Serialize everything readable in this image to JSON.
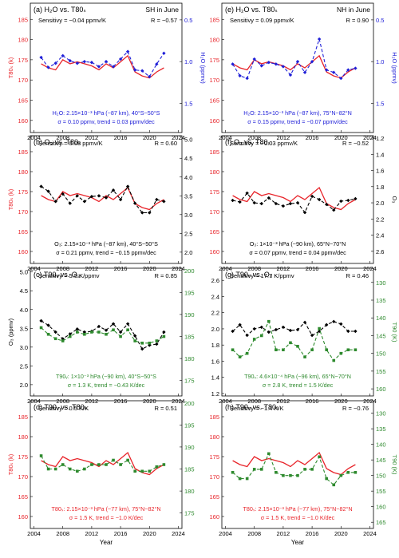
{
  "figure": {
    "x_axis_label": "Year",
    "x_ticks": [
      2004,
      2008,
      2012,
      2016,
      2020,
      2024
    ],
    "colors": {
      "red": "#e8242a",
      "blue": "#2020d8",
      "green": "#2e8a2e",
      "black": "#000000",
      "frame": "#000000"
    }
  },
  "chart_data": [
    {
      "type": "line",
      "title": "(a) H₂O vs. T80ₛ",
      "corner_label": "SH in June",
      "sens": "Sensitivy = −0.04 ppmv/K",
      "r": "R = −0.57",
      "info1": "H₂O: 2.15×10⁻³ hPa (~87 km), 40°S~50°S",
      "info2": "σ = 0.10 ppmv,   trend = 0.03 ppmv/dec",
      "info_color": "blue",
      "ylabel_left": "T80ₛ (k)",
      "ylabel_right": "H₂O (ppmv)",
      "left_ticks": [
        160,
        165,
        170,
        175,
        180,
        185
      ],
      "right_ticks": [
        "0.5",
        "1.0",
        "1.5"
      ],
      "left_range": [
        157,
        189
      ],
      "right_range": [
        0.3,
        1.85
      ],
      "right_inverted": true,
      "x": [
        2005,
        2006,
        2007,
        2008,
        2009,
        2010,
        2011,
        2012,
        2013,
        2014,
        2015,
        2016,
        2017,
        2018,
        2019,
        2020,
        2021,
        2022
      ],
      "series": [
        {
          "name": "T80ₛ",
          "axis": "left",
          "color": "red",
          "style": "solid",
          "marker": "none",
          "values": [
            174,
            173,
            172.5,
            175,
            174,
            174.5,
            174,
            173.5,
            172.5,
            174,
            173,
            174.5,
            176,
            172,
            171,
            170.5,
            172,
            173
          ]
        },
        {
          "name": "H₂O",
          "axis": "right",
          "color": "blue",
          "style": "dash",
          "marker": "diamond",
          "values": [
            0.95,
            1.07,
            1.02,
            0.93,
            0.99,
            1.02,
            1.0,
            1.01,
            1.06,
            1.0,
            1.06,
            0.97,
            0.88,
            1.1,
            1.11,
            1.18,
            1.03,
            0.9
          ]
        }
      ]
    },
    {
      "type": "line",
      "title": "(e) H₂O vs. T80ₛ",
      "corner_label": "NH in June",
      "sens": "Sensitivy = 0.09 ppmv/K",
      "r": "R = 0.90",
      "info1": "H₂O: 2.15×10⁻³ hPa (~87 km), 75°N~82°N",
      "info2": "σ = 0.15 ppmv,   trend = −0.07 ppmv/dec",
      "info_color": "blue",
      "ylabel_left": "",
      "ylabel_right": "H₂O (ppmv)",
      "left_ticks": [
        160,
        165,
        170,
        175,
        180,
        185
      ],
      "right_ticks": [
        "0.5",
        "1.0",
        "1.5"
      ],
      "left_range": [
        157,
        189
      ],
      "right_range": [
        0.3,
        1.85
      ],
      "right_inverted": true,
      "x": [
        2005,
        2006,
        2007,
        2008,
        2009,
        2010,
        2011,
        2012,
        2013,
        2014,
        2015,
        2016,
        2017,
        2018,
        2019,
        2020,
        2021,
        2022
      ],
      "series": [
        {
          "name": "T80ₛ",
          "axis": "left",
          "color": "red",
          "style": "solid",
          "marker": "none",
          "values": [
            174,
            173,
            172.5,
            175,
            174,
            174.5,
            174,
            173.5,
            172.5,
            174,
            173,
            174.5,
            176,
            172,
            171,
            170.5,
            172,
            173
          ]
        },
        {
          "name": "H₂O",
          "axis": "right",
          "color": "blue",
          "style": "dash",
          "marker": "diamond",
          "values": [
            1.03,
            1.17,
            1.2,
            0.97,
            1.05,
            1.01,
            1.03,
            1.06,
            1.16,
            1.0,
            1.13,
            1.0,
            0.73,
            1.1,
            1.13,
            1.2,
            1.1,
            1.08
          ]
        }
      ]
    },
    {
      "type": "line",
      "title": "(b) O₃ vs. T80ₛ",
      "corner_label": "",
      "sens": "Sensitivy = 0.08 ppmv/K",
      "r": "R = 0.60",
      "info1": "O₃: 2.15×10⁻³ hPa (~87 km), 40°S~50°S",
      "info2": "σ = 0.21 ppmv,   trend = −0.15 ppmv/dec",
      "info_color": "black",
      "ylabel_left": "T80ₛ (k)",
      "ylabel_right": "",
      "left_ticks": [
        160,
        165,
        170,
        175,
        180,
        185
      ],
      "right_ticks": [
        "2.0",
        "2.5",
        "3.0",
        "3.5",
        "4.0",
        "4.5",
        "5.0"
      ],
      "left_range": [
        157,
        189
      ],
      "right_range": [
        1.7,
        5.1
      ],
      "right_inverted": false,
      "x": [
        2005,
        2006,
        2007,
        2008,
        2009,
        2010,
        2011,
        2012,
        2013,
        2014,
        2015,
        2016,
        2017,
        2018,
        2019,
        2020,
        2021,
        2022
      ],
      "series": [
        {
          "name": "T80ₛ",
          "axis": "left",
          "color": "red",
          "style": "solid",
          "marker": "none",
          "values": [
            174,
            173,
            172.5,
            175,
            174,
            174.5,
            174,
            173.5,
            172.5,
            174,
            173,
            174.5,
            176,
            172,
            171,
            170.5,
            172,
            173
          ]
        },
        {
          "name": "O₃",
          "axis": "right",
          "color": "black",
          "style": "dash",
          "marker": "diamond",
          "values": [
            3.75,
            3.62,
            3.35,
            3.55,
            3.3,
            3.5,
            3.35,
            3.48,
            3.5,
            3.45,
            3.65,
            3.4,
            3.75,
            3.3,
            3.05,
            3.05,
            3.4,
            3.35
          ]
        }
      ]
    },
    {
      "type": "line",
      "title": "(f) O₃ vs. T80ₛ",
      "corner_label": "",
      "sens": "Sensitivy = −0.03 ppmv/K",
      "r": "R = −0.52",
      "info1": "O₃: 1×10⁻³ hPa (~90 km), 65°N~70°N",
      "info2": "σ = 0.07 ppmv,   trend = 0.04 ppmv/dec",
      "info_color": "black",
      "ylabel_left": "",
      "ylabel_right": "O₃",
      "left_ticks": [
        160,
        165,
        170,
        175,
        180,
        185
      ],
      "right_ticks": [
        "1.2",
        "1.4",
        "1.6",
        "1.8",
        "2.0",
        "2.2",
        "2.4",
        "2.6"
      ],
      "left_range": [
        157,
        189
      ],
      "right_range": [
        1.17,
        2.75
      ],
      "right_inverted": true,
      "x": [
        2005,
        2006,
        2007,
        2008,
        2009,
        2010,
        2011,
        2012,
        2013,
        2014,
        2015,
        2016,
        2017,
        2018,
        2019,
        2020,
        2021,
        2022
      ],
      "series": [
        {
          "name": "T80ₛ",
          "axis": "left",
          "color": "red",
          "style": "solid",
          "marker": "none",
          "values": [
            174,
            173,
            172.5,
            175,
            174,
            174.5,
            174,
            173.5,
            172.5,
            174,
            173,
            174.5,
            176,
            172,
            171,
            170.5,
            172,
            173
          ]
        },
        {
          "name": "O₃",
          "axis": "right",
          "color": "black",
          "style": "dash",
          "marker": "diamond",
          "values": [
            1.97,
            1.99,
            1.88,
            2.0,
            2.01,
            1.94,
            2.01,
            2.04,
            2.01,
            2.0,
            2.12,
            1.92,
            1.96,
            2.02,
            2.09,
            1.98,
            1.97,
            1.95
          ]
        }
      ]
    },
    {
      "type": "line",
      "title": "(c) T90ᵥ vs. O₃",
      "corner_label": "",
      "sens": "Sensitivy = 5.5 K/ppmv",
      "r": "R = 0.85",
      "info1": "T90ᵥ: 1×10⁻³ hPa (~90 km), 40°S~50°S",
      "info2": "σ = 1.3 K,   trend = −0.43 K/dec",
      "info_color": "green",
      "ylabel_left": "O₃ (ppmv)",
      "ylabel_right": "",
      "left_ticks": [
        "2.0",
        "2.5",
        "3.0",
        "3.5",
        "4.0",
        "4.5",
        "5.0"
      ],
      "right_ticks": [
        175,
        180,
        185,
        190,
        195,
        200
      ],
      "left_range": [
        1.7,
        5.1
      ],
      "right_range": [
        171.5,
        200.5
      ],
      "right_inverted": false,
      "x": [
        2005,
        2006,
        2007,
        2008,
        2009,
        2010,
        2011,
        2012,
        2013,
        2014,
        2015,
        2016,
        2017,
        2018,
        2019,
        2020,
        2021,
        2022
      ],
      "series": [
        {
          "name": "O₃",
          "axis": "left",
          "color": "black",
          "style": "dash",
          "marker": "diamond",
          "values": [
            3.7,
            3.58,
            3.4,
            3.22,
            3.35,
            3.48,
            3.4,
            3.42,
            3.55,
            3.45,
            3.62,
            3.4,
            3.62,
            3.3,
            2.95,
            3.05,
            3.08,
            3.4
          ]
        },
        {
          "name": "T90ᵥ",
          "axis": "right",
          "color": "green",
          "style": "dash",
          "marker": "square",
          "values": [
            187,
            185.5,
            184.5,
            184,
            185,
            186,
            185.5,
            186,
            186,
            185.5,
            186.5,
            185,
            186.5,
            184,
            183.5,
            183.5,
            184,
            185
          ]
        }
      ]
    },
    {
      "type": "line",
      "title": "(g) T90ₛ vs. O₃",
      "corner_label": "",
      "sens": "Sensitivy = 17.7 K/ppmv",
      "r": "R = 0.46",
      "info1": "T90ₛ: 4.6×10⁻⁴ hPa (~96 km), 65°N~70°N",
      "info2": "σ = 2.8 K,   trend = 1.5 K/dec",
      "info_color": "green",
      "ylabel_left": "",
      "ylabel_right": "T90 (K)",
      "left_ticks": [
        "1.2",
        "1.4",
        "1.6",
        "1.8",
        "2.0",
        "2.2",
        "2.4",
        "2.6"
      ],
      "right_ticks": [
        130,
        135,
        140,
        145,
        150,
        155,
        160
      ],
      "left_range": [
        1.17,
        2.75
      ],
      "right_range": [
        126,
        162
      ],
      "right_inverted": true,
      "x": [
        2005,
        2006,
        2007,
        2008,
        2009,
        2010,
        2011,
        2012,
        2013,
        2014,
        2015,
        2016,
        2017,
        2018,
        2019,
        2020,
        2021,
        2022
      ],
      "series": [
        {
          "name": "O₃",
          "axis": "left",
          "color": "black",
          "style": "dash",
          "marker": "diamond",
          "values": [
            1.97,
            2.05,
            1.92,
            2.0,
            2.02,
            1.96,
            1.99,
            2.02,
            1.98,
            1.99,
            2.08,
            1.92,
            1.97,
            2.05,
            2.09,
            2.06,
            1.97,
            1.97
          ]
        },
        {
          "name": "T90ₛ",
          "axis": "right",
          "color": "green",
          "style": "dash",
          "marker": "square",
          "values": [
            149,
            151,
            150,
            146,
            145,
            141,
            149,
            149,
            147,
            148,
            151,
            149,
            143,
            149,
            152,
            150,
            149,
            149
          ]
        }
      ]
    },
    {
      "type": "line",
      "title": "(d) T90ᵥ vs. T80ₛ",
      "corner_label": "",
      "sens": "Sensitivy = 0.5 K/K",
      "r": "R = 0.51",
      "info1": "T80ₛ: 2.15×10⁻³ hPa (~77 km), 75°N~82°N",
      "info2": "σ = 1.5 K,   trend = −1.0 K/dec",
      "info_color": "red",
      "ylabel_left": "T80ₛ (k)",
      "ylabel_right": "",
      "left_ticks": [
        160,
        165,
        170,
        175,
        180,
        185
      ],
      "right_ticks": [
        175,
        180,
        185,
        190,
        195,
        200
      ],
      "left_range": [
        157,
        189
      ],
      "right_range": [
        171.5,
        200.5
      ],
      "right_inverted": false,
      "x": [
        2005,
        2006,
        2007,
        2008,
        2009,
        2010,
        2011,
        2012,
        2013,
        2014,
        2015,
        2016,
        2017,
        2018,
        2019,
        2020,
        2021,
        2022
      ],
      "series": [
        {
          "name": "T80ₛ",
          "axis": "left",
          "color": "red",
          "style": "solid",
          "marker": "none",
          "values": [
            174,
            173,
            172.5,
            175,
            174,
            174.5,
            174,
            173.5,
            172.5,
            174,
            173,
            174.5,
            176,
            172,
            171,
            170.5,
            172,
            173
          ]
        },
        {
          "name": "T90ᵥ",
          "axis": "right",
          "color": "green",
          "style": "dash",
          "marker": "square",
          "values": [
            188,
            185,
            185,
            186,
            185,
            184.5,
            185,
            186,
            186,
            186,
            187,
            186,
            187,
            184.5,
            184.5,
            184.5,
            185.5,
            186
          ]
        }
      ]
    },
    {
      "type": "line",
      "title": "(h) T90ₛ vs. T80ₛ",
      "corner_label": "",
      "sens": "Sensitivy = −1.4 K/K",
      "r": "R = −0.76",
      "info1": "T80ₛ: 2.15×10⁻³ hPa (~77 km), 75°N~82°N",
      "info2": "σ = 1.5 K,   trend = −1.0 K/dec",
      "info_color": "red",
      "ylabel_left": "",
      "ylabel_right": "T90 (K)",
      "left_ticks": [
        160,
        165,
        170,
        175,
        180,
        185
      ],
      "right_ticks": [
        130,
        135,
        140,
        145,
        150,
        155,
        160,
        165
      ],
      "left_range": [
        157,
        189
      ],
      "right_range": [
        126,
        167
      ],
      "right_inverted": true,
      "x": [
        2005,
        2006,
        2007,
        2008,
        2009,
        2010,
        2011,
        2012,
        2013,
        2014,
        2015,
        2016,
        2017,
        2018,
        2019,
        2020,
        2021,
        2022
      ],
      "series": [
        {
          "name": "T80ₛ",
          "axis": "left",
          "color": "red",
          "style": "solid",
          "marker": "none",
          "values": [
            174,
            173,
            172.5,
            175,
            174,
            174.5,
            174,
            173.5,
            172.5,
            174,
            173,
            174.5,
            176,
            172,
            171,
            170.5,
            172,
            173
          ]
        },
        {
          "name": "T90ₛ",
          "axis": "right",
          "color": "green",
          "style": "dash",
          "marker": "square",
          "values": [
            149,
            151,
            151,
            148,
            148,
            143,
            149,
            150,
            150,
            150,
            148,
            148,
            144,
            151,
            153,
            150,
            149,
            149
          ]
        }
      ]
    }
  ]
}
